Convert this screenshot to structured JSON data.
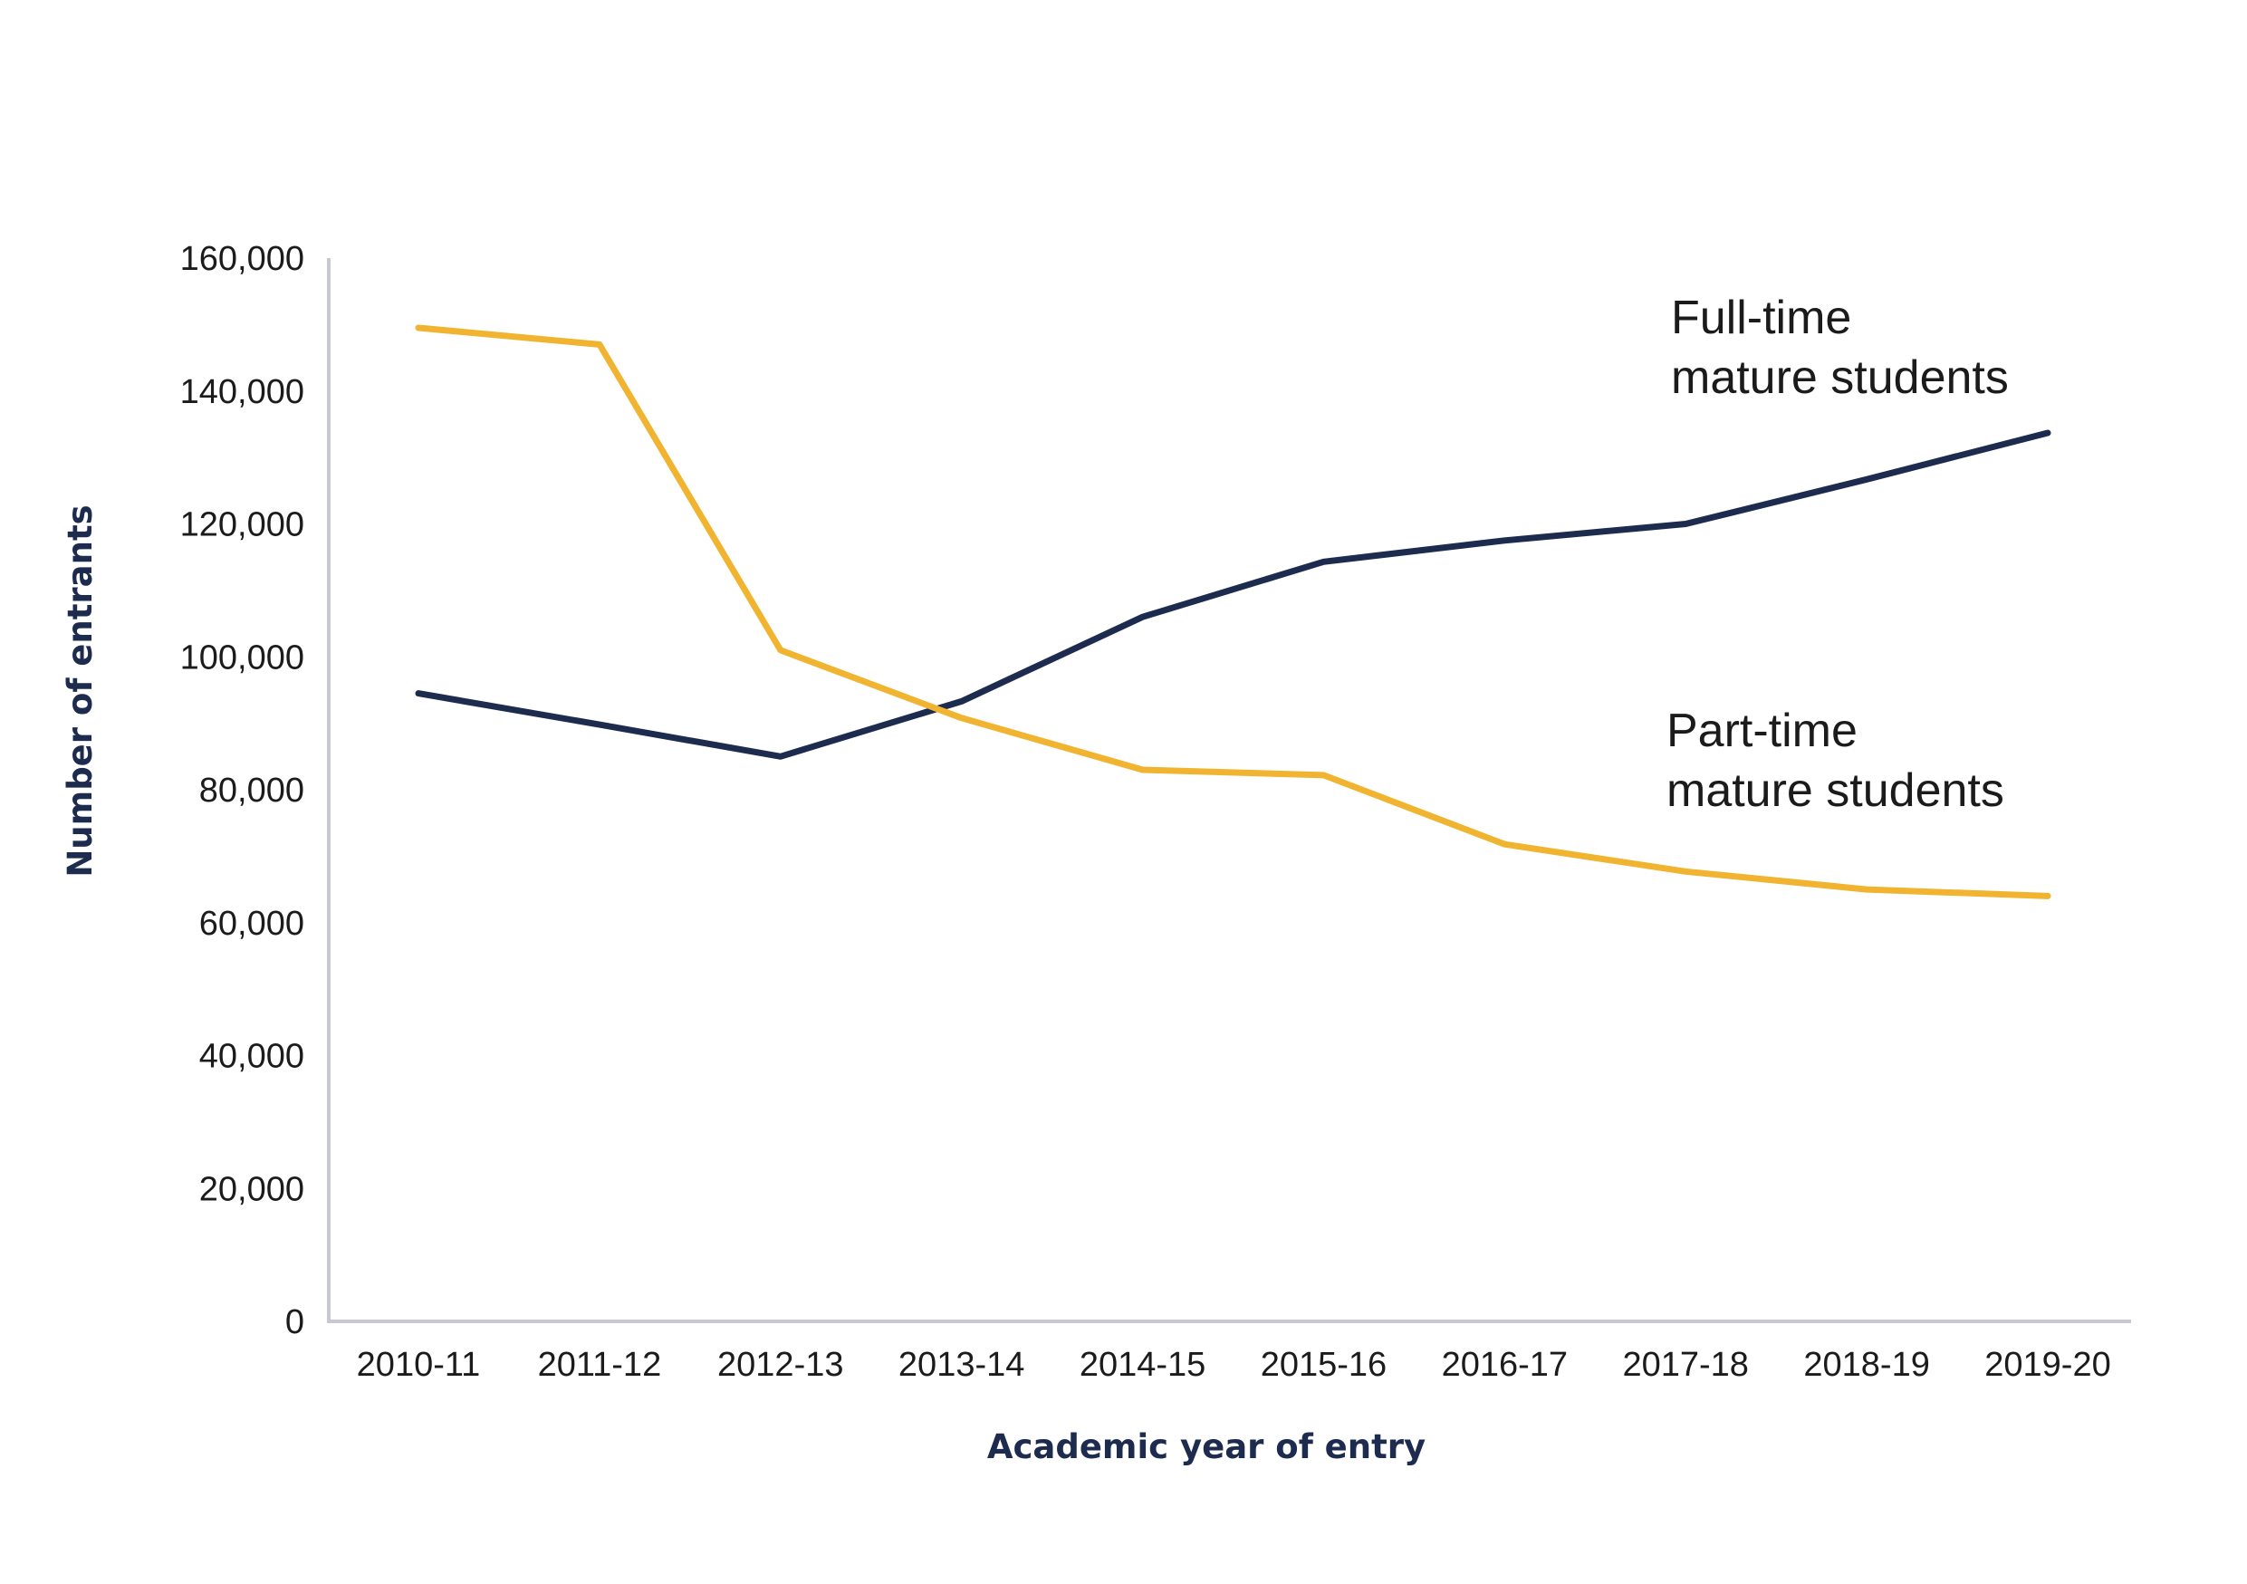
{
  "chart_data": {
    "type": "line",
    "title": "",
    "xlabel": "Academic year of entry",
    "ylabel": "Number of entrants",
    "categories": [
      "2010-11",
      "2011-12",
      "2012-13",
      "2013-14",
      "2014-15",
      "2015-16",
      "2016-17",
      "2017-18",
      "2018-19",
      "2019-20"
    ],
    "ylim": [
      0,
      160000
    ],
    "yticks": [
      0,
      20000,
      40000,
      60000,
      80000,
      100000,
      120000,
      140000,
      160000
    ],
    "ytick_labels": [
      "0",
      "20,000",
      "40,000",
      "60,000",
      "80,000",
      "100,000",
      "120,000",
      "140,000",
      "160,000"
    ],
    "grid": false,
    "legend": "inline labels at right end of lines",
    "series": [
      {
        "name": "Full-time mature students",
        "label_lines": [
          "Full-time",
          "mature students"
        ],
        "color": "#1d2b4f",
        "values": [
          94500,
          89800,
          85000,
          93300,
          106000,
          114300,
          117500,
          120000,
          126700,
          133700
        ]
      },
      {
        "name": "Part-time mature students",
        "label_lines": [
          "Part-time",
          "mature students"
        ],
        "color": "#f0b430",
        "values": [
          149500,
          147000,
          101000,
          90800,
          83000,
          82200,
          71800,
          67700,
          65000,
          64000
        ]
      }
    ],
    "colors": {
      "axis": "#c8c8d2",
      "axis_title": "#1d2b4f"
    }
  }
}
